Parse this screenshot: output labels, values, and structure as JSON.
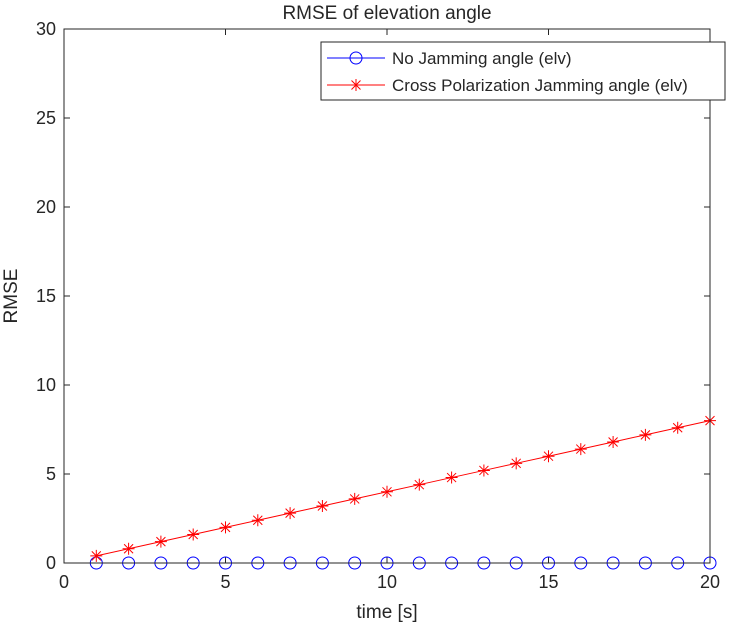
{
  "chart_data": {
    "type": "line",
    "title": "RMSE of elevation angle",
    "xlabel": "time [s]",
    "ylabel": "RMSE",
    "xlim": [
      0,
      20
    ],
    "ylim": [
      0,
      30
    ],
    "xticks": [
      0,
      5,
      10,
      15,
      20
    ],
    "yticks": [
      0,
      5,
      10,
      15,
      20,
      25,
      30
    ],
    "grid": false,
    "legend_position": "top-right",
    "series": [
      {
        "name": "No Jamming angle (elv)",
        "color": "#0000ff",
        "marker": "circle",
        "x": [
          1,
          2,
          3,
          4,
          5,
          6,
          7,
          8,
          9,
          10,
          11,
          12,
          13,
          14,
          15,
          16,
          17,
          18,
          19,
          20
        ],
        "y": [
          0,
          0,
          0,
          0,
          0,
          0,
          0,
          0,
          0,
          0,
          0,
          0,
          0,
          0,
          0,
          0,
          0,
          0,
          0,
          0
        ]
      },
      {
        "name": "Cross Polarization Jamming angle (elv)",
        "color": "#ff0000",
        "marker": "asterisk",
        "x": [
          1,
          2,
          3,
          4,
          5,
          6,
          7,
          8,
          9,
          10,
          11,
          12,
          13,
          14,
          15,
          16,
          17,
          18,
          19,
          20
        ],
        "y": [
          0.4,
          0.8,
          1.2,
          1.6,
          2.0,
          2.4,
          2.8,
          3.2,
          3.6,
          4.0,
          4.4,
          4.8,
          5.2,
          5.6,
          6.0,
          6.4,
          6.8,
          7.2,
          7.6,
          8.0
        ]
      }
    ]
  }
}
